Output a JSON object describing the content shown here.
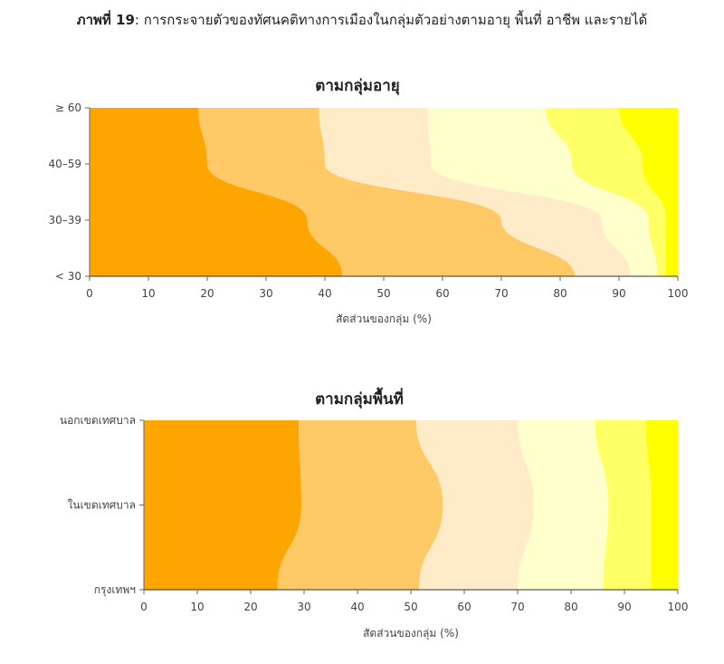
{
  "figure": {
    "label": "ภาพที่ 19",
    "text": ": การกระจายตัวของทัศนคติทางการเมืองในกลุ่มตัวอย่างตามอายุ พื้นที่ อาชีพ และรายได้"
  },
  "chart_data": [
    {
      "type": "area",
      "orientation": "horizontal-stacked-100",
      "title": "ตามกลุ่มอายุ",
      "xlabel": "สัดส่วนของกลุ่ม (%)",
      "ylabel": "",
      "xlim": [
        0,
        100
      ],
      "xticks": [
        0,
        10,
        20,
        30,
        40,
        50,
        60,
        70,
        80,
        90,
        100
      ],
      "categories": [
        "< 30",
        "30–39",
        "40–59",
        "≥ 60"
      ],
      "colors": [
        "#FFA500",
        "#FFC966",
        "#FFEBC8",
        "#FFFFCC",
        "#FFFF66",
        "#FFFF00"
      ],
      "boundaries": [
        [
          43,
          82.5,
          92,
          96.5,
          98,
          100
        ],
        [
          37,
          70,
          87,
          95,
          98,
          100
        ],
        [
          20,
          40,
          58,
          82,
          94,
          100
        ],
        [
          18.5,
          39,
          57.5,
          77.5,
          90,
          100
        ]
      ]
    },
    {
      "type": "area",
      "orientation": "horizontal-stacked-100",
      "title": "ตามกลุ่มพื้นที่",
      "xlabel": "สัดส่วนของกลุ่ม (%)",
      "ylabel": "",
      "xlim": [
        0,
        100
      ],
      "xticks": [
        0,
        10,
        20,
        30,
        40,
        50,
        60,
        70,
        80,
        90,
        100
      ],
      "categories": [
        "กรุงเทพฯ",
        "ในเขตเทศบาล",
        "นอกเขตเทศบาล"
      ],
      "colors": [
        "#FFA500",
        "#FFC966",
        "#FFEBC8",
        "#FFFFCC",
        "#FFFF66",
        "#FFFF00"
      ],
      "boundaries": [
        [
          25,
          51.5,
          70,
          86,
          95,
          100
        ],
        [
          29.5,
          56,
          73,
          87,
          95,
          100
        ],
        [
          29,
          51,
          70,
          84.5,
          94,
          100
        ]
      ]
    }
  ]
}
